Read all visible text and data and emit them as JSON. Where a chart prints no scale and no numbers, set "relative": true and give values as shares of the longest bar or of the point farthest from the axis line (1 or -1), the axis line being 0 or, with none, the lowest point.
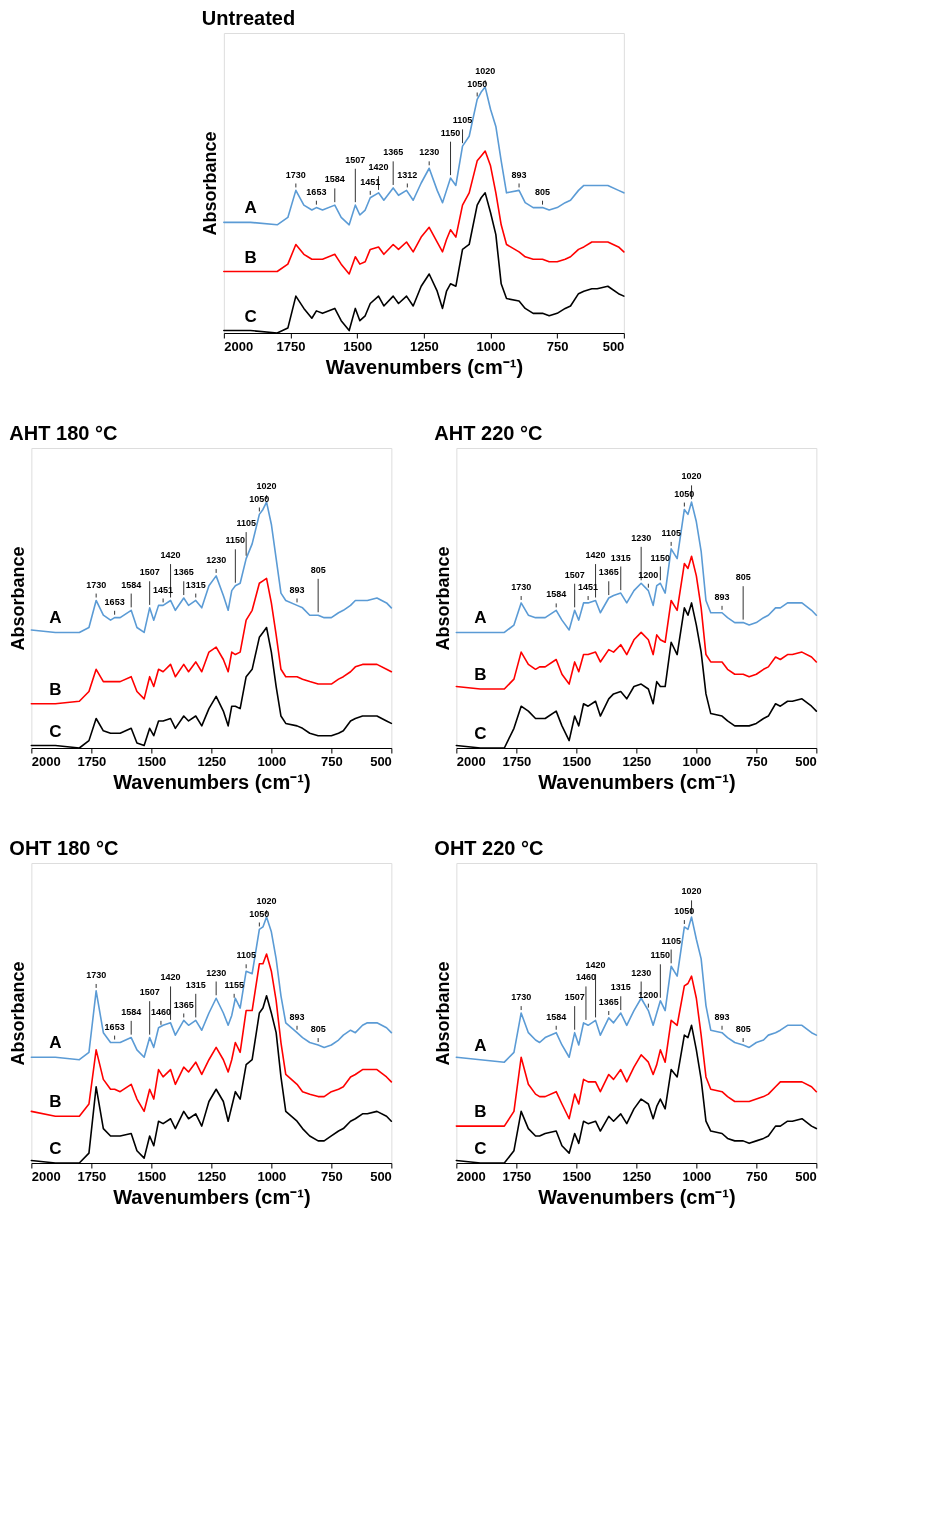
{
  "chart_data": [
    {
      "type": "line",
      "title": "Untreated",
      "xlabel": "Wavenumbers (cm⁻¹)",
      "ylabel": "Absorbance",
      "relative": true,
      "xlim": [
        2000,
        500
      ],
      "xticks": [
        2000,
        1750,
        1500,
        1250,
        1000,
        750,
        500
      ],
      "x": [
        2000,
        1900,
        1800,
        1760,
        1730,
        1700,
        1670,
        1653,
        1630,
        1584,
        1560,
        1530,
        1507,
        1490,
        1470,
        1451,
        1420,
        1400,
        1365,
        1345,
        1315,
        1290,
        1260,
        1230,
        1200,
        1180,
        1165,
        1150,
        1130,
        1105,
        1080,
        1050,
        1035,
        1020,
        1000,
        980,
        960,
        940,
        893,
        870,
        840,
        805,
        780,
        750,
        720,
        700,
        670,
        650,
        620,
        600,
        560,
        520,
        500
      ],
      "series": [
        {
          "name": "A",
          "color": "#5b9bd5",
          "values": [
            0.45,
            0.45,
            0.44,
            0.47,
            0.58,
            0.52,
            0.5,
            0.51,
            0.5,
            0.52,
            0.47,
            0.44,
            0.52,
            0.48,
            0.5,
            0.55,
            0.57,
            0.54,
            0.59,
            0.56,
            0.58,
            0.54,
            0.61,
            0.67,
            0.58,
            0.53,
            0.58,
            0.63,
            0.6,
            0.76,
            0.8,
            0.95,
            0.98,
            1.0,
            0.91,
            0.84,
            0.7,
            0.57,
            0.58,
            0.53,
            0.51,
            0.51,
            0.5,
            0.51,
            0.53,
            0.54,
            0.58,
            0.6,
            0.6,
            0.6,
            0.6,
            0.58,
            0.57
          ]
        },
        {
          "name": "B",
          "color": "#ff0000",
          "values": [
            0.25,
            0.25,
            0.25,
            0.28,
            0.36,
            0.32,
            0.3,
            0.3,
            0.3,
            0.32,
            0.28,
            0.24,
            0.31,
            0.28,
            0.29,
            0.34,
            0.35,
            0.32,
            0.36,
            0.34,
            0.37,
            0.33,
            0.39,
            0.43,
            0.37,
            0.33,
            0.38,
            0.42,
            0.39,
            0.52,
            0.57,
            0.7,
            0.72,
            0.74,
            0.68,
            0.57,
            0.44,
            0.36,
            0.33,
            0.31,
            0.3,
            0.3,
            0.29,
            0.29,
            0.3,
            0.31,
            0.34,
            0.35,
            0.37,
            0.37,
            0.37,
            0.35,
            0.33
          ]
        },
        {
          "name": "C",
          "color": "#000000",
          "values": [
            0.01,
            0.01,
            0.0,
            0.02,
            0.15,
            0.1,
            0.06,
            0.09,
            0.08,
            0.1,
            0.05,
            0.01,
            0.1,
            0.05,
            0.07,
            0.12,
            0.15,
            0.11,
            0.15,
            0.12,
            0.15,
            0.11,
            0.19,
            0.24,
            0.17,
            0.1,
            0.17,
            0.2,
            0.19,
            0.34,
            0.36,
            0.52,
            0.55,
            0.57,
            0.49,
            0.4,
            0.2,
            0.14,
            0.13,
            0.1,
            0.08,
            0.08,
            0.07,
            0.08,
            0.1,
            0.11,
            0.16,
            0.17,
            0.18,
            0.18,
            0.19,
            0.16,
            0.15
          ]
        }
      ],
      "annotations": [
        {
          "text": "1730",
          "x": 1730,
          "y": 0.58
        },
        {
          "text": "1653",
          "x": 1653,
          "y": 0.51
        },
        {
          "text": "1584",
          "x": 1584,
          "y": 0.52
        },
        {
          "text": "1507",
          "x": 1507,
          "y": 0.52
        },
        {
          "text": "1451",
          "x": 1451,
          "y": 0.55
        },
        {
          "text": "1420",
          "x": 1420,
          "y": 0.57
        },
        {
          "text": "1365",
          "x": 1365,
          "y": 0.59
        },
        {
          "text": "1312",
          "x": 1312,
          "y": 0.58
        },
        {
          "text": "1230",
          "x": 1230,
          "y": 0.67
        },
        {
          "text": "1150",
          "x": 1150,
          "y": 0.63
        },
        {
          "text": "1105",
          "x": 1105,
          "y": 0.76
        },
        {
          "text": "1050",
          "x": 1050,
          "y": 0.95
        },
        {
          "text": "1020",
          "x": 1020,
          "y": 1.0
        },
        {
          "text": "893",
          "x": 893,
          "y": 0.58
        },
        {
          "text": "805",
          "x": 805,
          "y": 0.51
        }
      ]
    },
    {
      "type": "line",
      "title": "AHT 180 °C",
      "xlabel": "Wavenumbers (cm⁻¹)",
      "ylabel": "Absorbance",
      "relative": true,
      "xlim": [
        2000,
        500
      ],
      "xticks": [
        2000,
        1750,
        1500,
        1250,
        1000,
        750,
        500
      ],
      "x": [
        2000,
        1900,
        1800,
        1760,
        1730,
        1700,
        1670,
        1653,
        1630,
        1584,
        1560,
        1530,
        1507,
        1490,
        1470,
        1451,
        1420,
        1400,
        1365,
        1345,
        1315,
        1290,
        1260,
        1230,
        1200,
        1180,
        1165,
        1150,
        1130,
        1105,
        1080,
        1050,
        1035,
        1020,
        1000,
        980,
        960,
        940,
        893,
        870,
        840,
        805,
        780,
        750,
        720,
        700,
        670,
        650,
        620,
        600,
        560,
        520,
        500
      ],
      "series": [
        {
          "name": "A",
          "color": "#5b9bd5",
          "values": [
            0.48,
            0.47,
            0.47,
            0.49,
            0.6,
            0.54,
            0.52,
            0.53,
            0.53,
            0.56,
            0.49,
            0.47,
            0.57,
            0.52,
            0.58,
            0.58,
            0.6,
            0.56,
            0.61,
            0.58,
            0.6,
            0.57,
            0.66,
            0.7,
            0.62,
            0.56,
            0.64,
            0.66,
            0.67,
            0.77,
            0.83,
            0.95,
            0.97,
            1.0,
            0.91,
            0.77,
            0.63,
            0.6,
            0.58,
            0.57,
            0.54,
            0.54,
            0.53,
            0.53,
            0.55,
            0.56,
            0.58,
            0.6,
            0.6,
            0.6,
            0.61,
            0.59,
            0.57
          ]
        },
        {
          "name": "B",
          "color": "#ff0000",
          "values": [
            0.18,
            0.18,
            0.19,
            0.23,
            0.32,
            0.27,
            0.27,
            0.27,
            0.27,
            0.29,
            0.23,
            0.2,
            0.29,
            0.25,
            0.32,
            0.31,
            0.34,
            0.29,
            0.34,
            0.31,
            0.35,
            0.31,
            0.39,
            0.41,
            0.36,
            0.31,
            0.39,
            0.38,
            0.39,
            0.52,
            0.56,
            0.67,
            0.68,
            0.69,
            0.59,
            0.46,
            0.32,
            0.29,
            0.29,
            0.28,
            0.27,
            0.26,
            0.26,
            0.26,
            0.28,
            0.29,
            0.31,
            0.33,
            0.34,
            0.34,
            0.34,
            0.32,
            0.31
          ]
        },
        {
          "name": "C",
          "color": "#000000",
          "values": [
            0.01,
            0.01,
            0.0,
            0.03,
            0.12,
            0.07,
            0.06,
            0.06,
            0.06,
            0.08,
            0.02,
            0.01,
            0.08,
            0.05,
            0.11,
            0.11,
            0.12,
            0.08,
            0.13,
            0.11,
            0.13,
            0.09,
            0.16,
            0.21,
            0.15,
            0.09,
            0.17,
            0.17,
            0.16,
            0.29,
            0.32,
            0.45,
            0.47,
            0.49,
            0.39,
            0.25,
            0.13,
            0.1,
            0.09,
            0.08,
            0.06,
            0.05,
            0.05,
            0.05,
            0.06,
            0.07,
            0.11,
            0.12,
            0.13,
            0.13,
            0.13,
            0.11,
            0.1
          ]
        }
      ],
      "annotations": [
        {
          "text": "1730",
          "x": 1730,
          "y": 0.6
        },
        {
          "text": "1653",
          "x": 1653,
          "y": 0.53
        },
        {
          "text": "1584",
          "x": 1584,
          "y": 0.56
        },
        {
          "text": "1507",
          "x": 1507,
          "y": 0.57
        },
        {
          "text": "1451",
          "x": 1451,
          "y": 0.58
        },
        {
          "text": "1420",
          "x": 1420,
          "y": 0.6
        },
        {
          "text": "1365",
          "x": 1365,
          "y": 0.61
        },
        {
          "text": "1315",
          "x": 1315,
          "y": 0.6
        },
        {
          "text": "1230",
          "x": 1230,
          "y": 0.7
        },
        {
          "text": "1150",
          "x": 1150,
          "y": 0.66
        },
        {
          "text": "1105",
          "x": 1105,
          "y": 0.77
        },
        {
          "text": "1050",
          "x": 1050,
          "y": 0.95
        },
        {
          "text": "1020",
          "x": 1020,
          "y": 1.0
        },
        {
          "text": "893",
          "x": 893,
          "y": 0.58
        },
        {
          "text": "805",
          "x": 805,
          "y": 0.54
        }
      ]
    },
    {
      "type": "line",
      "title": "AHT 220 °C",
      "xlabel": "Wavenumbers (cm⁻¹)",
      "ylabel": "Absorbance",
      "relative": true,
      "xlim": [
        2000,
        500
      ],
      "xticks": [
        2000,
        1750,
        1500,
        1250,
        1000,
        750,
        500
      ],
      "x": [
        2000,
        1900,
        1800,
        1760,
        1730,
        1700,
        1670,
        1653,
        1630,
        1584,
        1560,
        1530,
        1507,
        1490,
        1470,
        1451,
        1420,
        1400,
        1365,
        1345,
        1315,
        1290,
        1260,
        1230,
        1200,
        1180,
        1165,
        1150,
        1130,
        1105,
        1080,
        1050,
        1035,
        1020,
        1000,
        980,
        960,
        940,
        893,
        870,
        840,
        805,
        780,
        750,
        720,
        700,
        670,
        650,
        620,
        600,
        560,
        520,
        500
      ],
      "series": [
        {
          "name": "A",
          "color": "#5b9bd5",
          "values": [
            0.47,
            0.47,
            0.47,
            0.5,
            0.59,
            0.54,
            0.53,
            0.53,
            0.53,
            0.56,
            0.52,
            0.48,
            0.56,
            0.52,
            0.59,
            0.59,
            0.6,
            0.55,
            0.61,
            0.62,
            0.63,
            0.59,
            0.64,
            0.67,
            0.64,
            0.58,
            0.66,
            0.67,
            0.63,
            0.81,
            0.77,
            0.97,
            0.95,
            1.0,
            0.92,
            0.8,
            0.6,
            0.55,
            0.55,
            0.53,
            0.51,
            0.51,
            0.5,
            0.51,
            0.53,
            0.54,
            0.57,
            0.57,
            0.59,
            0.59,
            0.59,
            0.56,
            0.54
          ]
        },
        {
          "name": "B",
          "color": "#ff0000",
          "values": [
            0.25,
            0.24,
            0.24,
            0.28,
            0.39,
            0.34,
            0.32,
            0.33,
            0.33,
            0.36,
            0.3,
            0.26,
            0.35,
            0.31,
            0.38,
            0.38,
            0.39,
            0.35,
            0.4,
            0.39,
            0.42,
            0.38,
            0.44,
            0.47,
            0.44,
            0.38,
            0.46,
            0.44,
            0.43,
            0.6,
            0.56,
            0.75,
            0.73,
            0.78,
            0.7,
            0.57,
            0.38,
            0.35,
            0.35,
            0.32,
            0.3,
            0.3,
            0.29,
            0.3,
            0.32,
            0.33,
            0.37,
            0.36,
            0.38,
            0.38,
            0.39,
            0.37,
            0.35
          ]
        },
        {
          "name": "C",
          "color": "#000000",
          "values": [
            0.01,
            0.0,
            0.0,
            0.08,
            0.17,
            0.15,
            0.12,
            0.12,
            0.12,
            0.15,
            0.09,
            0.03,
            0.13,
            0.09,
            0.18,
            0.17,
            0.19,
            0.13,
            0.2,
            0.22,
            0.23,
            0.2,
            0.25,
            0.26,
            0.24,
            0.18,
            0.27,
            0.25,
            0.25,
            0.43,
            0.38,
            0.57,
            0.54,
            0.59,
            0.5,
            0.39,
            0.22,
            0.14,
            0.13,
            0.11,
            0.09,
            0.09,
            0.09,
            0.1,
            0.12,
            0.13,
            0.18,
            0.17,
            0.19,
            0.19,
            0.2,
            0.17,
            0.15
          ]
        }
      ],
      "annotations": [
        {
          "text": "1730",
          "x": 1730,
          "y": 0.59
        },
        {
          "text": "1584",
          "x": 1584,
          "y": 0.56
        },
        {
          "text": "1507",
          "x": 1507,
          "y": 0.56
        },
        {
          "text": "1451",
          "x": 1451,
          "y": 0.59
        },
        {
          "text": "1420",
          "x": 1420,
          "y": 0.6
        },
        {
          "text": "1365",
          "x": 1365,
          "y": 0.61
        },
        {
          "text": "1315",
          "x": 1315,
          "y": 0.63
        },
        {
          "text": "1230",
          "x": 1230,
          "y": 0.67
        },
        {
          "text": "1200",
          "x": 1200,
          "y": 0.64
        },
        {
          "text": "1150",
          "x": 1150,
          "y": 0.67
        },
        {
          "text": "1105",
          "x": 1105,
          "y": 0.81
        },
        {
          "text": "1050",
          "x": 1050,
          "y": 0.97
        },
        {
          "text": "1020",
          "x": 1020,
          "y": 1.0
        },
        {
          "text": "893",
          "x": 893,
          "y": 0.55
        },
        {
          "text": "805",
          "x": 805,
          "y": 0.51
        }
      ]
    },
    {
      "type": "line",
      "title": "OHT 180 °C",
      "xlabel": "Wavenumbers (cm⁻¹)",
      "ylabel": "Absorbance",
      "relative": true,
      "xlim": [
        2000,
        500
      ],
      "xticks": [
        2000,
        1750,
        1500,
        1250,
        1000,
        750,
        500
      ],
      "x": [
        2000,
        1900,
        1800,
        1760,
        1730,
        1700,
        1670,
        1653,
        1630,
        1584,
        1560,
        1530,
        1507,
        1490,
        1470,
        1451,
        1420,
        1400,
        1365,
        1345,
        1315,
        1290,
        1260,
        1230,
        1200,
        1180,
        1165,
        1150,
        1130,
        1105,
        1080,
        1050,
        1035,
        1020,
        1000,
        980,
        960,
        940,
        893,
        870,
        840,
        805,
        780,
        750,
        720,
        700,
        670,
        650,
        620,
        600,
        560,
        520,
        500
      ],
      "series": [
        {
          "name": "A",
          "color": "#5b9bd5",
          "values": [
            0.43,
            0.43,
            0.42,
            0.45,
            0.7,
            0.53,
            0.49,
            0.49,
            0.49,
            0.51,
            0.46,
            0.43,
            0.51,
            0.47,
            0.55,
            0.56,
            0.57,
            0.52,
            0.58,
            0.56,
            0.58,
            0.54,
            0.61,
            0.67,
            0.61,
            0.56,
            0.6,
            0.67,
            0.63,
            0.78,
            0.77,
            0.95,
            0.96,
            1.0,
            0.94,
            0.83,
            0.68,
            0.57,
            0.53,
            0.51,
            0.49,
            0.48,
            0.47,
            0.48,
            0.5,
            0.52,
            0.54,
            0.53,
            0.56,
            0.57,
            0.57,
            0.55,
            0.53
          ]
        },
        {
          "name": "B",
          "color": "#ff0000",
          "values": [
            0.21,
            0.19,
            0.19,
            0.24,
            0.46,
            0.34,
            0.3,
            0.3,
            0.29,
            0.32,
            0.26,
            0.21,
            0.3,
            0.26,
            0.38,
            0.35,
            0.38,
            0.32,
            0.39,
            0.37,
            0.41,
            0.36,
            0.42,
            0.47,
            0.42,
            0.37,
            0.42,
            0.49,
            0.45,
            0.62,
            0.62,
            0.81,
            0.81,
            0.85,
            0.78,
            0.66,
            0.49,
            0.36,
            0.32,
            0.29,
            0.28,
            0.27,
            0.27,
            0.29,
            0.3,
            0.31,
            0.35,
            0.36,
            0.38,
            0.38,
            0.38,
            0.35,
            0.33
          ]
        },
        {
          "name": "C",
          "color": "#000000",
          "values": [
            0.01,
            0.0,
            0.0,
            0.04,
            0.31,
            0.14,
            0.11,
            0.11,
            0.11,
            0.12,
            0.05,
            0.02,
            0.11,
            0.07,
            0.17,
            0.16,
            0.18,
            0.14,
            0.21,
            0.18,
            0.2,
            0.15,
            0.25,
            0.3,
            0.25,
            0.17,
            0.23,
            0.29,
            0.26,
            0.4,
            0.42,
            0.61,
            0.63,
            0.68,
            0.61,
            0.53,
            0.35,
            0.21,
            0.17,
            0.14,
            0.11,
            0.09,
            0.09,
            0.11,
            0.13,
            0.14,
            0.17,
            0.18,
            0.2,
            0.2,
            0.21,
            0.19,
            0.17
          ]
        }
      ],
      "annotations": [
        {
          "text": "1730",
          "x": 1730,
          "y": 0.7
        },
        {
          "text": "1653",
          "x": 1653,
          "y": 0.49
        },
        {
          "text": "1584",
          "x": 1584,
          "y": 0.51
        },
        {
          "text": "1507",
          "x": 1507,
          "y": 0.51
        },
        {
          "text": "1460",
          "x": 1460,
          "y": 0.55
        },
        {
          "text": "1420",
          "x": 1420,
          "y": 0.57
        },
        {
          "text": "1365",
          "x": 1365,
          "y": 0.58
        },
        {
          "text": "1315",
          "x": 1315,
          "y": 0.58
        },
        {
          "text": "1230",
          "x": 1230,
          "y": 0.67
        },
        {
          "text": "1155",
          "x": 1155,
          "y": 0.66
        },
        {
          "text": "1105",
          "x": 1105,
          "y": 0.78
        },
        {
          "text": "1050",
          "x": 1050,
          "y": 0.95
        },
        {
          "text": "1020",
          "x": 1020,
          "y": 1.0
        },
        {
          "text": "893",
          "x": 893,
          "y": 0.53
        },
        {
          "text": "805",
          "x": 805,
          "y": 0.48
        }
      ]
    },
    {
      "type": "line",
      "title": "OHT 220 °C",
      "xlabel": "Wavenumbers (cm⁻¹)",
      "ylabel": "Absorbance",
      "relative": true,
      "xlim": [
        2000,
        500
      ],
      "xticks": [
        2000,
        1750,
        1500,
        1250,
        1000,
        750,
        500
      ],
      "x": [
        2000,
        1900,
        1800,
        1760,
        1730,
        1700,
        1670,
        1653,
        1630,
        1584,
        1560,
        1530,
        1507,
        1490,
        1470,
        1451,
        1420,
        1400,
        1365,
        1345,
        1315,
        1290,
        1260,
        1230,
        1200,
        1180,
        1165,
        1150,
        1130,
        1105,
        1080,
        1050,
        1035,
        1020,
        1000,
        980,
        960,
        940,
        893,
        870,
        840,
        805,
        780,
        750,
        720,
        700,
        670,
        650,
        620,
        600,
        560,
        520,
        500
      ],
      "series": [
        {
          "name": "A",
          "color": "#5b9bd5",
          "values": [
            0.43,
            0.42,
            0.41,
            0.45,
            0.61,
            0.53,
            0.5,
            0.49,
            0.51,
            0.53,
            0.48,
            0.43,
            0.53,
            0.48,
            0.57,
            0.56,
            0.58,
            0.52,
            0.59,
            0.57,
            0.61,
            0.56,
            0.62,
            0.67,
            0.62,
            0.56,
            0.61,
            0.66,
            0.62,
            0.8,
            0.76,
            0.96,
            0.95,
            1.0,
            0.91,
            0.83,
            0.64,
            0.54,
            0.53,
            0.51,
            0.49,
            0.48,
            0.47,
            0.49,
            0.5,
            0.52,
            0.53,
            0.54,
            0.56,
            0.56,
            0.56,
            0.53,
            0.52
          ]
        },
        {
          "name": "B",
          "color": "#ff0000",
          "values": [
            0.15,
            0.15,
            0.15,
            0.21,
            0.43,
            0.32,
            0.28,
            0.27,
            0.27,
            0.29,
            0.24,
            0.18,
            0.28,
            0.24,
            0.34,
            0.33,
            0.33,
            0.29,
            0.36,
            0.34,
            0.38,
            0.33,
            0.39,
            0.44,
            0.41,
            0.36,
            0.4,
            0.46,
            0.41,
            0.58,
            0.56,
            0.72,
            0.73,
            0.76,
            0.67,
            0.52,
            0.35,
            0.3,
            0.29,
            0.27,
            0.25,
            0.25,
            0.25,
            0.26,
            0.27,
            0.28,
            0.31,
            0.33,
            0.33,
            0.33,
            0.33,
            0.31,
            0.29
          ]
        },
        {
          "name": "C",
          "color": "#000000",
          "values": [
            0.01,
            0.0,
            0.0,
            0.05,
            0.21,
            0.14,
            0.11,
            0.11,
            0.12,
            0.13,
            0.07,
            0.04,
            0.12,
            0.08,
            0.17,
            0.16,
            0.17,
            0.13,
            0.19,
            0.17,
            0.2,
            0.16,
            0.22,
            0.26,
            0.24,
            0.18,
            0.23,
            0.26,
            0.22,
            0.38,
            0.35,
            0.52,
            0.51,
            0.56,
            0.46,
            0.34,
            0.17,
            0.13,
            0.12,
            0.1,
            0.09,
            0.09,
            0.08,
            0.09,
            0.1,
            0.11,
            0.15,
            0.15,
            0.17,
            0.17,
            0.18,
            0.15,
            0.14
          ]
        }
      ],
      "annotations": [
        {
          "text": "1730",
          "x": 1730,
          "y": 0.61
        },
        {
          "text": "1584",
          "x": 1584,
          "y": 0.53
        },
        {
          "text": "1507",
          "x": 1507,
          "y": 0.53
        },
        {
          "text": "1460",
          "x": 1460,
          "y": 0.57
        },
        {
          "text": "1420",
          "x": 1420,
          "y": 0.58
        },
        {
          "text": "1365",
          "x": 1365,
          "y": 0.59
        },
        {
          "text": "1315",
          "x": 1315,
          "y": 0.61
        },
        {
          "text": "1230",
          "x": 1230,
          "y": 0.67
        },
        {
          "text": "1200",
          "x": 1200,
          "y": 0.62
        },
        {
          "text": "1150",
          "x": 1150,
          "y": 0.66
        },
        {
          "text": "1105",
          "x": 1105,
          "y": 0.8
        },
        {
          "text": "1050",
          "x": 1050,
          "y": 0.96
        },
        {
          "text": "1020",
          "x": 1020,
          "y": 1.0
        },
        {
          "text": "893",
          "x": 893,
          "y": 0.53
        },
        {
          "text": "805",
          "x": 805,
          "y": 0.48
        }
      ]
    }
  ]
}
